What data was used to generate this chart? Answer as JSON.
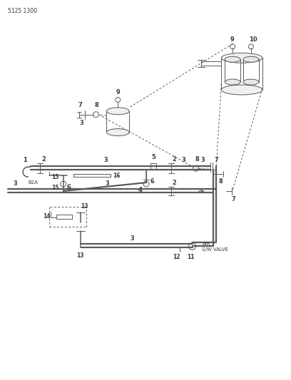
{
  "title": "5125 1300",
  "background_color": "#ffffff",
  "line_color": "#5a5a5a",
  "text_color": "#3a3a3a",
  "figsize": [
    4.08,
    5.33
  ],
  "dpi": 100,
  "air_valve_label": [
    "AIR",
    "S/W VALVE"
  ]
}
